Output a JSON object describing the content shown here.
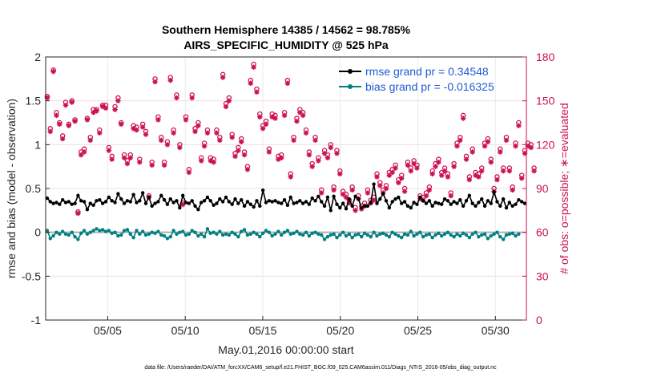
{
  "chart_data": {
    "type": "line",
    "title": "Southern Hemisphere 14385 / 14562 = 98.785%",
    "subtitle": "AIRS_SPECIFIC_HUMIDITY @ 525 hPa",
    "xlabel": "May.01,2016 00:00:00 start",
    "ylabel_left": "rmse and bias (model - observation)",
    "ylabel_right": "# of obs: o=possible; ∗=evaluated",
    "footer": "data file: /Users/raeder/DAI/ATM_forcXX/CAM6_setup/f.e21.FHIST_BGC.f09_025.CAM6assim.011/Diags_NTrS_2016-05/obs_diag_output.nc",
    "x_ticks": [
      "05/05",
      "05/10",
      "05/15",
      "05/20",
      "05/25",
      "05/30"
    ],
    "x_tick_days": [
      5,
      10,
      15,
      20,
      25,
      30
    ],
    "xlim_days": [
      1,
      32
    ],
    "ylim_left": [
      -1,
      2
    ],
    "left_ticks": [
      "-1",
      "-0.5",
      "0",
      "0.5",
      "1",
      "1.5",
      "2"
    ],
    "ylim_right": [
      0,
      180
    ],
    "right_ticks": [
      "0",
      "30",
      "60",
      "90",
      "120",
      "150",
      "180"
    ],
    "grid": true,
    "legend": {
      "placement": "top-right",
      "entries": [
        "rmse grand pr = 0.34548",
        "bias grand pr = -0.016325"
      ]
    },
    "colors": {
      "rmse": "#000000",
      "bias": "#008080",
      "obs": "#cc1155",
      "zero_line": "#b0b0b0",
      "legend_text": "#1f5bd6"
    },
    "series": [
      {
        "name": "rmse grand pr = 0.34548",
        "values": [
          0.39,
          0.35,
          0.33,
          0.34,
          0.32,
          0.37,
          0.34,
          0.35,
          0.32,
          0.33,
          0.42,
          0.36,
          0.35,
          0.26,
          0.33,
          0.31,
          0.36,
          0.37,
          0.33,
          0.35,
          0.4,
          0.36,
          0.34,
          0.44,
          0.38,
          0.33,
          0.36,
          0.35,
          0.43,
          0.34,
          0.36,
          0.45,
          0.33,
          0.4,
          0.3,
          0.33,
          0.35,
          0.42,
          0.37,
          0.32,
          0.38,
          0.34,
          0.36,
          0.28,
          0.42,
          0.34,
          0.33,
          0.36,
          0.3,
          0.26,
          0.34,
          0.36,
          0.4,
          0.36,
          0.31,
          0.33,
          0.38,
          0.35,
          0.4,
          0.35,
          0.32,
          0.38,
          0.33,
          0.37,
          0.3,
          0.35,
          0.32,
          0.29,
          0.36,
          0.3,
          0.48,
          0.34,
          0.36,
          0.35,
          0.36,
          0.34,
          0.33,
          0.37,
          0.31,
          0.4,
          0.33,
          0.34,
          0.36,
          0.33,
          0.35,
          0.32,
          0.39,
          0.36,
          0.41,
          0.35,
          0.3,
          0.4,
          0.25,
          0.41,
          0.32,
          0.28,
          0.33,
          0.27,
          0.38,
          0.3,
          0.41,
          0.38,
          0.28,
          0.3,
          0.3,
          0.34,
          0.55,
          0.33,
          0.38,
          0.44,
          0.36,
          0.28,
          0.35,
          0.38,
          0.4,
          0.33,
          0.35,
          0.3,
          0.28,
          0.34,
          0.32,
          0.4,
          0.36,
          0.33,
          0.36,
          0.3,
          0.34,
          0.33,
          0.32,
          0.38,
          0.36,
          0.32,
          0.35,
          0.33,
          0.37,
          0.3,
          0.36,
          0.42,
          0.33,
          0.3,
          0.34,
          0.38,
          0.3,
          0.36,
          0.33,
          0.46,
          0.35,
          0.3,
          0.38,
          0.28,
          0.34,
          0.3,
          0.32,
          0.37,
          0.35,
          0.33
        ]
      },
      {
        "name": "bias grand pr = -0.016325",
        "values": [
          0.02,
          -0.07,
          -0.04,
          0.0,
          -0.02,
          0.01,
          -0.02,
          -0.03,
          0.0,
          -0.05,
          -0.08,
          -0.01,
          0.02,
          -0.02,
          0.0,
          0.02,
          0.04,
          0.02,
          0.03,
          0.01,
          0.02,
          -0.01,
          0.0,
          -0.04,
          -0.03,
          0.02,
          0.03,
          -0.02,
          -0.06,
          0.02,
          -0.02,
          0.01,
          -0.03,
          -0.02,
          0.0,
          -0.01,
          0.01,
          -0.03,
          -0.04,
          -0.07,
          -0.05,
          0.02,
          -0.02,
          0.0,
          0.01,
          -0.03,
          -0.02,
          0.02,
          0.0,
          -0.04,
          -0.02,
          -0.05,
          0.04,
          -0.01,
          0.0,
          -0.02,
          0.01,
          -0.03,
          -0.02,
          -0.03,
          0.0,
          -0.02,
          -0.05,
          0.01,
          0.03,
          -0.03,
          -0.02,
          0.0,
          -0.02,
          -0.05,
          -0.01,
          0.02,
          0.0,
          -0.04,
          -0.02,
          0.01,
          -0.03,
          0.0,
          0.02,
          -0.02,
          -0.01,
          0.01,
          -0.02,
          -0.03,
          0.0,
          -0.04,
          -0.01,
          0.0,
          -0.02,
          -0.03,
          -0.08,
          -0.05,
          -0.03,
          -0.02,
          -0.06,
          -0.03,
          0.0,
          -0.04,
          -0.02,
          -0.06,
          -0.03,
          -0.02,
          -0.05,
          -0.01,
          -0.03,
          -0.05,
          0.0,
          -0.04,
          -0.02,
          -0.01,
          -0.03,
          -0.05,
          0.0,
          -0.02,
          -0.04,
          -0.06,
          -0.02,
          -0.03,
          0.01,
          -0.04,
          -0.02,
          0.0,
          -0.05,
          -0.03,
          -0.02,
          -0.06,
          -0.03,
          -0.01,
          -0.04,
          -0.02,
          0.0,
          -0.03,
          -0.05,
          -0.02,
          -0.04,
          -0.01,
          -0.03,
          -0.06,
          -0.02,
          0.0,
          -0.05,
          -0.03,
          -0.02,
          -0.07,
          -0.04,
          -0.02,
          0.0,
          -0.05,
          -0.08,
          -0.03,
          -0.02,
          -0.01,
          -0.04,
          -0.02
        ]
      },
      {
        "name": "# of obs possible",
        "values": [
          153,
          131,
          171,
          142,
          135,
          126,
          149,
          134,
          150,
          137,
          74,
          115,
          117,
          138,
          125,
          144,
          144,
          130,
          147,
          147,
          118,
          112,
          146,
          152,
          135,
          113,
          109,
          113,
          133,
          132,
          110,
          134,
          129,
          85,
          108,
          165,
          139,
          125,
          108,
          122,
          166,
          130,
          154,
          120,
          80,
          139,
          103,
          154,
          131,
          135,
          111,
          121,
          130,
          111,
          110,
          130,
          125,
          168,
          148,
          152,
          127,
          114,
          118,
          124,
          115,
          105,
          164,
          175,
          158,
          141,
          133,
          136,
          117,
          141,
          140,
          112,
          113,
          142,
          164,
          100,
          125,
          138,
          144,
          142,
          130,
          115,
          107,
          125,
          111,
          89,
          116,
          113,
          120,
          91,
          116,
          102,
          88,
          86,
          82,
          91,
          77,
          85,
          78,
          80,
          89,
          82,
          84,
          100,
          94,
          89,
          92,
          101,
          103,
          106,
          96,
          99,
          90,
          108,
          104,
          109,
          106,
          85,
          84,
          87,
          91,
          102,
          107,
          110,
          101,
          104,
          100,
          87,
          107,
          121,
          125,
          140,
          112,
          98,
          117,
          101,
          100,
          104,
          121,
          124,
          110,
          90,
          98,
          117,
          104,
          125,
          104,
          91,
          121,
          135,
          99,
          116,
          121,
          120,
          104
        ]
      },
      {
        "name": "# of obs evaluated",
        "values": [
          152,
          129,
          170,
          140,
          134,
          124,
          147,
          133,
          149,
          136,
          73,
          113,
          115,
          137,
          123,
          142,
          143,
          128,
          146,
          145,
          116,
          110,
          144,
          150,
          134,
          111,
          107,
          111,
          131,
          130,
          108,
          132,
          127,
          84,
          106,
          163,
          137,
          123,
          106,
          120,
          164,
          128,
          152,
          118,
          79,
          137,
          101,
          152,
          129,
          133,
          109,
          119,
          128,
          109,
          108,
          128,
          123,
          166,
          146,
          150,
          125,
          112,
          116,
          122,
          113,
          103,
          162,
          173,
          156,
          139,
          131,
          134,
          115,
          139,
          138,
          110,
          111,
          140,
          162,
          98,
          123,
          136,
          142,
          140,
          128,
          113,
          105,
          123,
          109,
          87,
          114,
          111,
          118,
          89,
          114,
          100,
          86,
          84,
          80,
          89,
          75,
          83,
          76,
          78,
          87,
          80,
          82,
          98,
          92,
          87,
          90,
          99,
          101,
          104,
          94,
          97,
          88,
          106,
          102,
          107,
          104,
          83,
          82,
          85,
          89,
          100,
          105,
          108,
          99,
          102,
          98,
          85,
          105,
          119,
          123,
          138,
          110,
          96,
          115,
          99,
          98,
          102,
          119,
          122,
          108,
          88,
          96,
          115,
          102,
          123,
          102,
          89,
          119,
          133,
          97,
          114,
          119,
          118,
          102
        ]
      }
    ]
  }
}
